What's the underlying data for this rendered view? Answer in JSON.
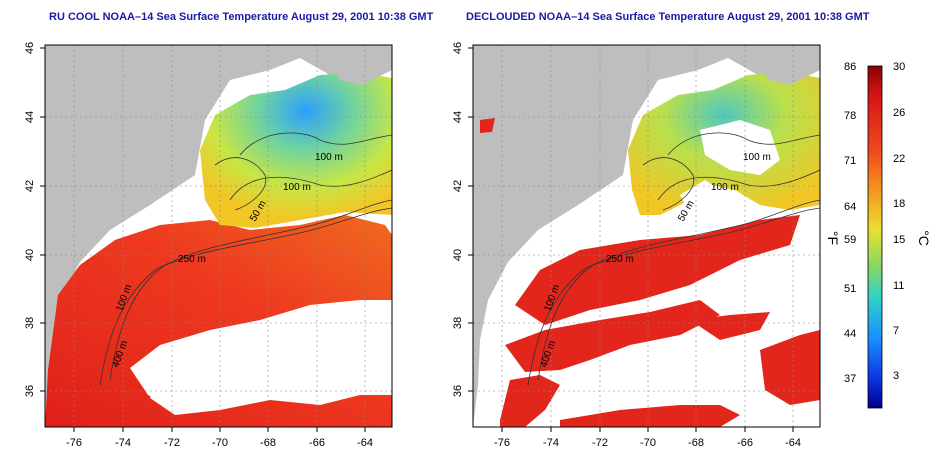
{
  "maps": [
    {
      "title": "RU COOL NOAA–14 Sea Surface Temperature August 29, 2001 10:38 GMT",
      "lon_ticks": [
        "-76",
        "-74",
        "-72",
        "-70",
        "-68",
        "-66",
        "-64"
      ],
      "lat_ticks": [
        "36",
        "38",
        "40",
        "42",
        "44",
        "46"
      ],
      "contour_labels": [
        "100 m",
        "100 m",
        "50 m",
        "250 m",
        "400 m",
        "100 m"
      ]
    },
    {
      "title": "DECLOUDED NOAA–14 Sea Surface Temperature August 29, 2001 10:38 GMT",
      "lon_ticks": [
        "-76",
        "-74",
        "-72",
        "-70",
        "-68",
        "-66",
        "-64"
      ],
      "lat_ticks": [
        "36",
        "38",
        "40",
        "42",
        "44",
        "46"
      ],
      "contour_labels": [
        "100 m",
        "100 m",
        "50 m",
        "250 m",
        "400 m",
        "100 m"
      ]
    }
  ],
  "colorbar": {
    "fahrenheit_ticks": [
      "86",
      "78",
      "71",
      "64",
      "59",
      "51",
      "44",
      "37"
    ],
    "celsius_ticks": [
      "30",
      "26",
      "22",
      "18",
      "15",
      "11",
      "7",
      "3"
    ],
    "fahrenheit_unit": "°F",
    "celsius_unit": "°C"
  },
  "colors": {
    "land": "#bebebe",
    "cloud": "#ffffff",
    "warm": "#e8231a",
    "cool": "#2a8cff",
    "title": "#1a1aa6"
  }
}
